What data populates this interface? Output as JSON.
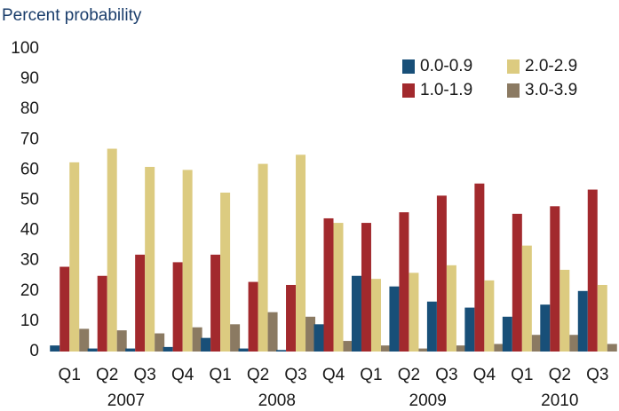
{
  "chart_data": {
    "type": "bar",
    "title": "Percent probability",
    "categories": [
      "Q1",
      "Q2",
      "Q3",
      "Q4",
      "Q1",
      "Q2",
      "Q3",
      "Q4",
      "Q1",
      "Q2",
      "Q3",
      "Q4",
      "Q1",
      "Q2",
      "Q3"
    ],
    "year_groups": [
      {
        "label": "2007",
        "count": 4
      },
      {
        "label": "2008",
        "count": 4
      },
      {
        "label": "2009",
        "count": 4
      },
      {
        "label": "2010",
        "count": 3
      }
    ],
    "series": [
      {
        "name": "0.0-0.9",
        "color": "#184f78",
        "values": [
          2,
          1,
          1,
          1.5,
          4.5,
          1,
          0.5,
          9,
          25,
          21.5,
          16.5,
          14.5,
          11.5,
          15.5,
          20
        ]
      },
      {
        "name": "1.0-1.9",
        "color": "#a2292d",
        "values": [
          28,
          25,
          32,
          29.5,
          32,
          23,
          22,
          44,
          42.5,
          46,
          51.5,
          55.5,
          45.5,
          48,
          53.5
        ]
      },
      {
        "name": "2.0-2.9",
        "color": "#dccb80",
        "values": [
          62.5,
          67,
          61,
          60,
          52.5,
          62,
          65,
          42.5,
          24,
          26,
          28.5,
          23.5,
          35,
          27,
          22
        ]
      },
      {
        "name": "3.0-3.9",
        "color": "#8b7a62",
        "values": [
          7.5,
          7,
          6,
          8,
          9,
          13,
          11.5,
          3.5,
          2,
          1,
          2,
          2.5,
          5.5,
          5.5,
          2.5
        ]
      }
    ],
    "ylim": [
      0,
      100
    ],
    "yticks": [
      0,
      10,
      20,
      30,
      40,
      50,
      60,
      70,
      80,
      90,
      100
    ],
    "grid": false,
    "legend": "upper right"
  }
}
